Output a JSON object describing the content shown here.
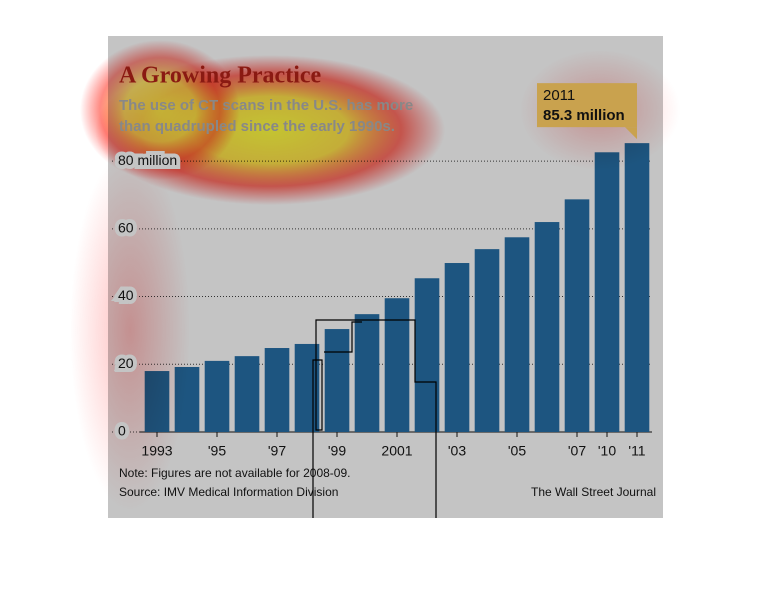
{
  "chart_data": {
    "type": "bar",
    "title": "A Growing Practice",
    "subtitle_lines": [
      "The use of CT scans in the U.S. has more",
      "than quadrupled since the early 1990s."
    ],
    "categories": [
      "1993",
      null,
      "'95",
      null,
      "'97",
      null,
      "'99",
      null,
      "2001",
      null,
      "'03",
      null,
      "'05",
      null,
      "'07",
      "'10",
      "'11"
    ],
    "values": [
      18,
      19.2,
      21,
      22.4,
      24.8,
      26,
      30.4,
      34.8,
      39.5,
      45.4,
      49.9,
      54,
      57.5,
      62,
      68.7,
      82.6,
      85.3
    ],
    "value_labels": [
      null,
      null,
      null,
      null,
      null,
      null,
      null,
      null,
      null,
      null,
      null,
      null,
      null,
      null,
      null,
      null,
      "85.3 million"
    ],
    "annotation": "2011",
    "color": "#1d5580",
    "ylim": [
      0,
      88
    ],
    "yticks": [
      0,
      20,
      40,
      60,
      {
        "value": 80,
        "label": "80 million"
      }
    ],
    "grid": true,
    "note": "Note: Figures are not available for 2008-09.",
    "source": "Source: IMV Medical Information Division",
    "credit": "The Wall Street Journal"
  }
}
